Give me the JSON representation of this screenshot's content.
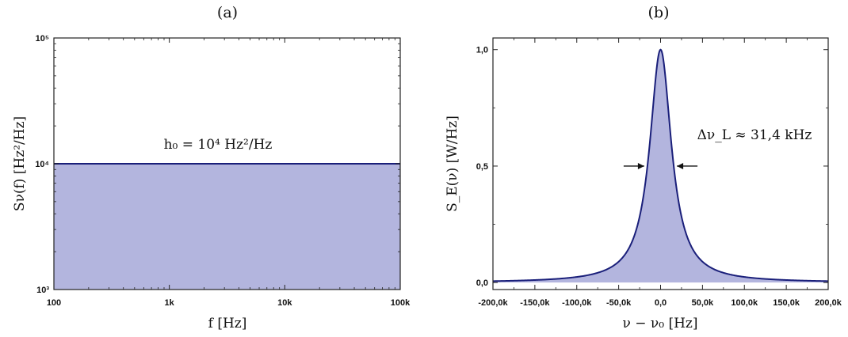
{
  "chart_data": [
    {
      "panel": "(a)",
      "type": "area",
      "x_scale": "log",
      "y_scale": "log",
      "xlim": [
        100,
        100000
      ],
      "ylim": [
        1000,
        100000
      ],
      "xlabel": "f [Hz]",
      "ylabel": "Sν(f) [Hz²/Hz]",
      "x_tick_values": [
        100,
        1000,
        10000,
        100000
      ],
      "x_tick_labels": [
        "100",
        "1k",
        "10k",
        "100k"
      ],
      "y_tick_values": [
        1000,
        10000,
        100000
      ],
      "y_tick_labels": [
        "10³",
        "10⁴",
        "10⁵"
      ],
      "series": [
        {
          "x": [
            100,
            100000
          ],
          "y": [
            10000,
            10000
          ]
        }
      ],
      "annotation": "h₀ = 10⁴ Hz²/Hz",
      "line_color": "#1a1f7a",
      "fill_color": "#b3b5de"
    },
    {
      "panel": "(b)",
      "type": "area",
      "xlim": [
        -200000,
        200000
      ],
      "ylim": [
        -0.03,
        1.05
      ],
      "xlabel": "ν − ν₀ [Hz]",
      "ylabel": "S_E(ν) [W/Hz]",
      "x_tick_values": [
        -200000,
        -150000,
        -100000,
        -50000,
        0,
        50000,
        100000,
        150000,
        200000
      ],
      "x_tick_labels": [
        "-200,0k",
        "-150,0k",
        "-100,0k",
        "-50,0k",
        "0,0",
        "50,0k",
        "100,0k",
        "150,0k",
        "200,0k"
      ],
      "y_tick_values": [
        0,
        0.5,
        1.0
      ],
      "y_tick_labels": [
        "0,0",
        "0,5",
        "1,0"
      ],
      "lorentzian": {
        "center": 0,
        "peak": 1.0,
        "fwhm": 31400
      },
      "annotation": "Δν_L ≈ 31,4 kHz",
      "line_color": "#1a1f7a",
      "fill_color": "#b3b5de"
    }
  ]
}
